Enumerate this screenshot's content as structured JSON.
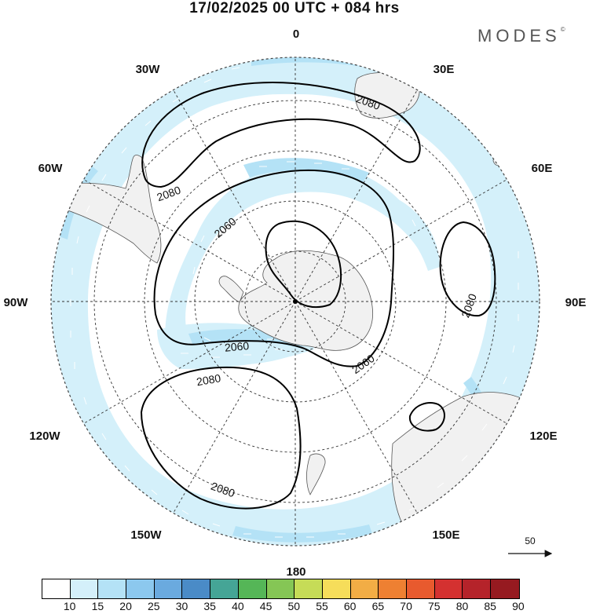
{
  "title": "17/02/2025  00 UTC  + 084 hrs",
  "logo": "MODES",
  "logo_mark": "©",
  "projection": "south-polar-stereographic",
  "longitude_labels": {
    "top": "0",
    "upper_left": "30W",
    "upper_right": "30E",
    "left_upper": "60W",
    "right_upper": "60E",
    "left": "90W",
    "right": "90E",
    "left_lower": "120W",
    "right_lower": "120E",
    "lower_left": "150W",
    "lower_right": "150E",
    "bottom": "180"
  },
  "contour_labels": {
    "c1": "2080",
    "c2": "2080",
    "c3": "2060",
    "c4": "2080",
    "c5": "2060",
    "c6": "2060",
    "c7": "2080",
    "c8": "2080"
  },
  "vector_reference": "50",
  "legend": {
    "colors": [
      "#ffffff",
      "#d4f0fa",
      "#b4e2f6",
      "#8cc8ee",
      "#6aaadf",
      "#4a8bc7",
      "#45a596",
      "#55b657",
      "#85c655",
      "#c6dc57",
      "#f6dd5a",
      "#f2ad45",
      "#ee8032",
      "#e85a2e",
      "#d43130",
      "#b5232a",
      "#961a20"
    ],
    "labels": [
      "10",
      "15",
      "20",
      "25",
      "30",
      "35",
      "40",
      "45",
      "50",
      "55",
      "60",
      "65",
      "70",
      "75",
      "80",
      "85",
      "90"
    ]
  }
}
